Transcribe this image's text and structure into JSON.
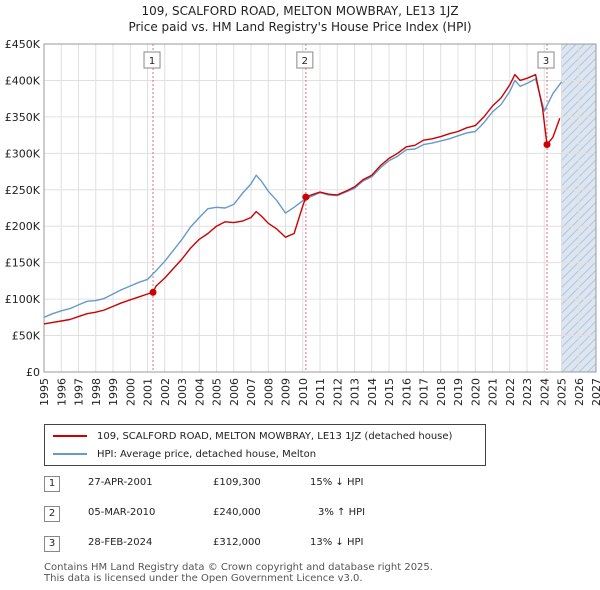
{
  "title_line1": "109, SCALFORD ROAD, MELTON MOWBRAY, LE13 1JZ",
  "title_line2": "Price paid vs. HM Land Registry's House Price Index (HPI)",
  "colors": {
    "price": "#cc0000",
    "hpi": "#6699cc",
    "shade": "#dce6f2",
    "grid": "#e0e0e0",
    "marker_line": "#e07070"
  },
  "legend": {
    "price_label": "109, SCALFORD ROAD, MELTON MOWBRAY, LE13 1JZ (detached house)",
    "hpi_label": "HPI: Average price, detached house, Melton"
  },
  "transactions": [
    {
      "num": "1",
      "date": "27-APR-2001",
      "price": "£109,300",
      "hpi_change": "15% ↓ HPI"
    },
    {
      "num": "2",
      "date": "05-MAR-2010",
      "price": "£240,000",
      "hpi_change": "3% ↑ HPI"
    },
    {
      "num": "3",
      "date": "28-FEB-2024",
      "price": "£312,000",
      "hpi_change": "13% ↓ HPI"
    }
  ],
  "footer_line1": "Contains HM Land Registry data © Crown copyright and database right 2025.",
  "footer_line2": "This data is licensed under the Open Government Licence v3.0.",
  "chart_data": {
    "type": "line",
    "title": "109, SCALFORD ROAD, MELTON MOWBRAY, LE13 1JZ",
    "subtitle": "Price paid vs. HM Land Registry's House Price Index (HPI)",
    "xlim": [
      1995,
      2027
    ],
    "ylim": [
      0,
      450000
    ],
    "x_ticks": [
      1995,
      1996,
      1997,
      1998,
      1999,
      2000,
      2001,
      2002,
      2003,
      2004,
      2005,
      2006,
      2007,
      2008,
      2009,
      2010,
      2011,
      2012,
      2013,
      2014,
      2015,
      2016,
      2017,
      2018,
      2019,
      2020,
      2021,
      2022,
      2023,
      2024,
      2025,
      2026,
      2027
    ],
    "y_ticks": [
      0,
      50000,
      100000,
      150000,
      200000,
      250000,
      300000,
      350000,
      400000,
      450000
    ],
    "y_tick_labels": [
      "£0",
      "£50K",
      "£100K",
      "£150K",
      "£200K",
      "£250K",
      "£300K",
      "£350K",
      "£400K",
      "£450K"
    ],
    "future_shade_from": 2025.0,
    "sale_points": [
      {
        "label": "1",
        "x": 2001.32,
        "y": 109300
      },
      {
        "label": "2",
        "x": 2010.18,
        "y": 240000
      },
      {
        "label": "3",
        "x": 2024.16,
        "y": 312000
      }
    ],
    "series": [
      {
        "name": "HPI: Average price, detached house, Melton",
        "x": [
          1995,
          1995.5,
          1996,
          1996.5,
          1997,
          1997.5,
          1998,
          1998.5,
          1999,
          1999.5,
          2000,
          2000.5,
          2001,
          2001.5,
          2002,
          2002.5,
          2003,
          2003.5,
          2004,
          2004.5,
          2005,
          2005.5,
          2006,
          2006.5,
          2007,
          2007.3,
          2007.6,
          2008,
          2008.5,
          2009,
          2009.5,
          2010,
          2010.5,
          2011,
          2011.5,
          2012,
          2012.5,
          2013,
          2013.5,
          2014,
          2014.5,
          2015,
          2015.5,
          2016,
          2016.5,
          2017,
          2017.5,
          2018,
          2018.5,
          2019,
          2019.5,
          2020,
          2020.5,
          2021,
          2021.5,
          2022,
          2022.3,
          2022.6,
          2023,
          2023.5,
          2024,
          2024.5,
          2025
        ],
        "values": [
          75000,
          80000,
          84000,
          87000,
          92000,
          97000,
          98000,
          101000,
          107000,
          113000,
          118000,
          123000,
          127000,
          139000,
          152000,
          167000,
          182000,
          199000,
          212000,
          224000,
          226000,
          225000,
          230000,
          245000,
          258000,
          270000,
          262000,
          248000,
          235000,
          218000,
          226000,
          235000,
          241000,
          246000,
          243000,
          242000,
          247000,
          252000,
          262000,
          268000,
          280000,
          290000,
          296000,
          305000,
          306000,
          312000,
          314000,
          317000,
          320000,
          324000,
          328000,
          330000,
          342000,
          357000,
          367000,
          385000,
          400000,
          392000,
          396000,
          402000,
          358000,
          382000,
          398000
        ]
      },
      {
        "name": "109, SCALFORD ROAD, MELTON MOWBRAY, LE13 1JZ (detached house)",
        "x": [
          1995,
          1995.5,
          1996,
          1996.5,
          1997,
          1997.5,
          1998,
          1998.5,
          1999,
          1999.5,
          2000,
          2000.5,
          2001,
          2001.32,
          2001.5,
          2002,
          2002.5,
          2003,
          2003.5,
          2004,
          2004.5,
          2005,
          2005.5,
          2006,
          2006.5,
          2007,
          2007.3,
          2007.6,
          2008,
          2008.5,
          2009,
          2009.5,
          2010,
          2010.18,
          2010.5,
          2011,
          2011.5,
          2012,
          2012.5,
          2013,
          2013.5,
          2014,
          2014.5,
          2015,
          2015.5,
          2016,
          2016.5,
          2017,
          2017.5,
          2018,
          2018.5,
          2019,
          2019.5,
          2020,
          2020.5,
          2021,
          2021.5,
          2022,
          2022.3,
          2022.6,
          2023,
          2023.5,
          2023.9,
          2024.16,
          2024.5,
          2024.9
        ],
        "values": [
          66000,
          68000,
          70000,
          72000,
          76000,
          80000,
          82000,
          85000,
          90000,
          95000,
          99000,
          103000,
          107000,
          109300,
          118000,
          129000,
          142000,
          155000,
          170000,
          182000,
          190000,
          200000,
          206000,
          205000,
          207000,
          212000,
          220000,
          214000,
          204000,
          196000,
          185000,
          190000,
          228000,
          240000,
          243000,
          247000,
          244000,
          243000,
          248000,
          254000,
          264000,
          270000,
          283000,
          293000,
          300000,
          309000,
          311000,
          318000,
          320000,
          323000,
          327000,
          330000,
          335000,
          338000,
          350000,
          365000,
          376000,
          394000,
          408000,
          400000,
          403000,
          408000,
          362000,
          312000,
          322000,
          348000
        ]
      }
    ]
  }
}
